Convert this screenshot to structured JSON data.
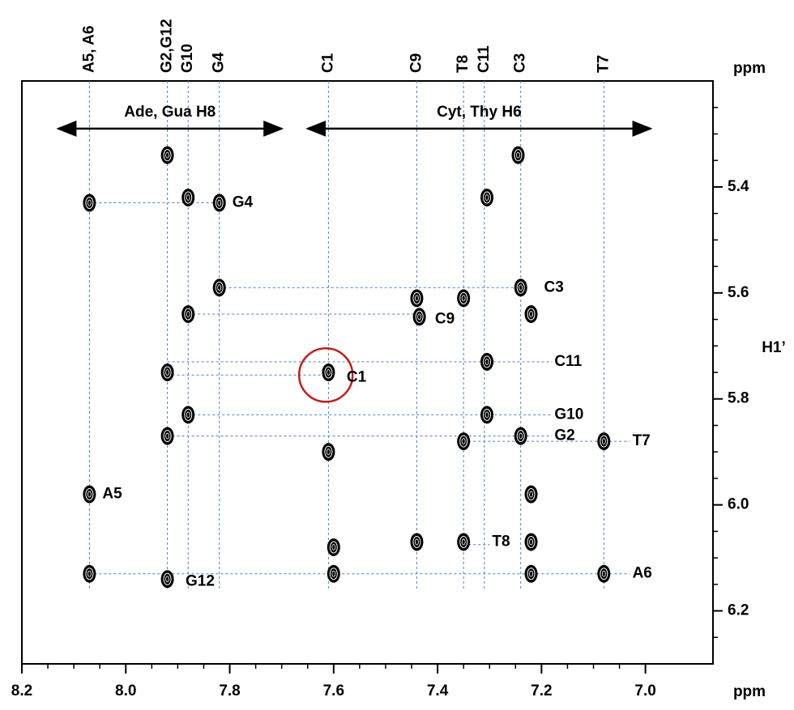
{
  "chart_data": {
    "type": "scatter",
    "x_label": "ppm",
    "y_label": "ppm",
    "y_axis_title": "H1’",
    "xlim": [
      8.2,
      6.87
    ],
    "ylim": [
      5.2,
      6.3
    ],
    "xticks": [
      8.2,
      {
        "value": 8,
        "label": "8.0"
      },
      7.8,
      7.6,
      7.4,
      7.2,
      {
        "value": 7,
        "label": "7.0"
      }
    ],
    "yticks": [
      5.4,
      5.6,
      5.8,
      {
        "value": 6,
        "label": "6.0"
      },
      6.2
    ],
    "color": "#000000",
    "guide_color": "#4a7fd4",
    "assignments": [
      {
        "label": "A5, A6",
        "x": 8.07
      },
      {
        "label": "G2,G12",
        "x": 7.92
      },
      {
        "label": "G10",
        "x": 7.88
      },
      {
        "label": "G4",
        "x": 7.82
      },
      {
        "label": "C1",
        "x": 7.61
      },
      {
        "label": "C9",
        "x": 7.44
      },
      {
        "label": "T8",
        "x": 7.35
      },
      {
        "label": "C11",
        "x": 7.31
      },
      {
        "label": "C3",
        "x": 7.24
      },
      {
        "label": "T7",
        "x": 7.08
      }
    ],
    "regions": [
      {
        "label": "Ade, Gua H8",
        "x1": 8.13,
        "x2": 7.7,
        "y": 5.29
      },
      {
        "label": "Cyt, Thy H6",
        "x1": 7.65,
        "x2": 6.99,
        "y": 5.29
      }
    ],
    "peaks": [
      {
        "x": 7.92,
        "y": 5.34
      },
      {
        "x": 7.245,
        "y": 5.34
      },
      {
        "x": 8.07,
        "y": 5.43
      },
      {
        "x": 7.88,
        "y": 5.42
      },
      {
        "x": 7.82,
        "y": 5.43
      },
      {
        "x": 7.305,
        "y": 5.42
      },
      {
        "x": 7.82,
        "y": 5.59
      },
      {
        "x": 7.44,
        "y": 5.61
      },
      {
        "x": 7.35,
        "y": 5.61
      },
      {
        "x": 7.24,
        "y": 5.59
      },
      {
        "x": 7.88,
        "y": 5.64
      },
      {
        "x": 7.435,
        "y": 5.645
      },
      {
        "x": 7.22,
        "y": 5.64
      },
      {
        "x": 7.92,
        "y": 5.75
      },
      {
        "x": 7.61,
        "y": 5.75
      },
      {
        "x": 7.305,
        "y": 5.73
      },
      {
        "x": 7.88,
        "y": 5.83
      },
      {
        "x": 7.305,
        "y": 5.83
      },
      {
        "x": 7.92,
        "y": 5.87
      },
      {
        "x": 7.35,
        "y": 5.88
      },
      {
        "x": 7.24,
        "y": 5.87
      },
      {
        "x": 7.08,
        "y": 5.88
      },
      {
        "x": 7.61,
        "y": 5.9
      },
      {
        "x": 8.07,
        "y": 5.98
      },
      {
        "x": 7.22,
        "y": 5.98
      },
      {
        "x": 7.6,
        "y": 6.08
      },
      {
        "x": 7.44,
        "y": 6.07
      },
      {
        "x": 7.35,
        "y": 6.07
      },
      {
        "x": 7.22,
        "y": 6.07
      },
      {
        "x": 8.07,
        "y": 6.13
      },
      {
        "x": 7.92,
        "y": 6.14
      },
      {
        "x": 7.6,
        "y": 6.13
      },
      {
        "x": 7.22,
        "y": 6.13
      },
      {
        "x": 7.08,
        "y": 6.13
      }
    ],
    "connectors": [
      {
        "y": 5.43,
        "x1": 8.07,
        "x2": 7.82
      },
      {
        "y": 5.59,
        "x1": 7.82,
        "x2": 7.24
      },
      {
        "y": 5.64,
        "x1": 7.88,
        "x2": 7.43
      },
      {
        "y": 5.73,
        "x1": 7.92,
        "x2": 7.18
      },
      {
        "y": 5.755,
        "x1": 7.92,
        "x2": 7.61
      },
      {
        "y": 5.83,
        "x1": 7.88,
        "x2": 7.18
      },
      {
        "y": 5.87,
        "x1": 7.92,
        "x2": 7.18
      },
      {
        "y": 5.88,
        "x1": 7.35,
        "x2": 7.03
      },
      {
        "y": 6.075,
        "x1": 7.35,
        "x2": 7.3
      },
      {
        "y": 6.13,
        "x1": 8.07,
        "x2": 7.03
      }
    ],
    "annotations": [
      {
        "text": "G4",
        "x": 7.795,
        "y": 5.43
      },
      {
        "text": "C3",
        "x": 7.195,
        "y": 5.59
      },
      {
        "text": "C9",
        "x": 7.405,
        "y": 5.65
      },
      {
        "text": "C1",
        "x": 7.575,
        "y": 5.76
      },
      {
        "text": "C11",
        "x": 7.175,
        "y": 5.73
      },
      {
        "text": "G10",
        "x": 7.175,
        "y": 5.83
      },
      {
        "text": "G2",
        "x": 7.175,
        "y": 5.87
      },
      {
        "text": "T7",
        "x": 7.025,
        "y": 5.88
      },
      {
        "text": "A5",
        "x": 8.045,
        "y": 5.98
      },
      {
        "text": "T8",
        "x": 7.295,
        "y": 6.07
      },
      {
        "text": "A6",
        "x": 7.025,
        "y": 6.13
      },
      {
        "text": "G12",
        "x": 7.885,
        "y": 6.145
      }
    ],
    "highlight": {
      "x": 7.615,
      "y": 5.755,
      "color": "#c0201e"
    }
  }
}
